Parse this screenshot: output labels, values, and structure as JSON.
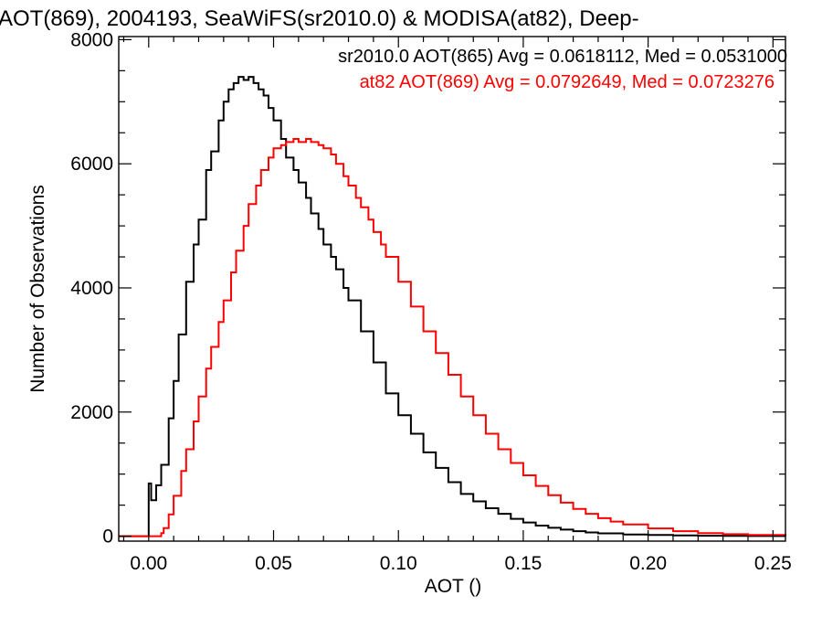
{
  "chart_data": {
    "type": "line",
    "title": "AOT(869), 2004193, SeaWiFS(sr2010.0) & MODISA(at82), Deep-",
    "xlabel": "AOT ()",
    "ylabel": "Number of Observations",
    "xlim": [
      -0.012,
      0.255
    ],
    "ylim": [
      -80,
      8050
    ],
    "xticks": [
      0.0,
      0.05,
      0.1,
      0.15,
      0.2,
      0.25
    ],
    "xtick_labels": [
      "0.00",
      "0.05",
      "0.10",
      "0.15",
      "0.20",
      "0.25"
    ],
    "yticks": [
      0,
      2000,
      4000,
      6000,
      8000
    ],
    "ytick_labels": [
      "0",
      "2000",
      "4000",
      "6000",
      "8000"
    ],
    "grid": false,
    "legend_position": "top-right",
    "series": [
      {
        "name": "sr2010.0 AOT(865) Avg = 0.0618112, Med = 0.0531000",
        "color": "#000000",
        "style": "step",
        "points": [
          [
            -0.012,
            0
          ],
          [
            -0.001,
            0
          ],
          [
            0,
            850
          ],
          [
            0.001,
            580
          ],
          [
            0.003,
            820
          ],
          [
            0.005,
            1150
          ],
          [
            0.008,
            1900
          ],
          [
            0.01,
            2500
          ],
          [
            0.012,
            3250
          ],
          [
            0.015,
            4100
          ],
          [
            0.018,
            4700
          ],
          [
            0.02,
            5100
          ],
          [
            0.023,
            5900
          ],
          [
            0.025,
            6200
          ],
          [
            0.028,
            6700
          ],
          [
            0.03,
            7000
          ],
          [
            0.032,
            7200
          ],
          [
            0.034,
            7300
          ],
          [
            0.036,
            7400
          ],
          [
            0.038,
            7350
          ],
          [
            0.04,
            7400
          ],
          [
            0.042,
            7300
          ],
          [
            0.044,
            7200
          ],
          [
            0.046,
            7100
          ],
          [
            0.048,
            6900
          ],
          [
            0.05,
            6700
          ],
          [
            0.053,
            6400
          ],
          [
            0.055,
            6100
          ],
          [
            0.058,
            5900
          ],
          [
            0.06,
            5700
          ],
          [
            0.063,
            5450
          ],
          [
            0.065,
            5200
          ],
          [
            0.068,
            4950
          ],
          [
            0.07,
            4700
          ],
          [
            0.073,
            4500
          ],
          [
            0.075,
            4300
          ],
          [
            0.078,
            4000
          ],
          [
            0.08,
            3800
          ],
          [
            0.085,
            3300
          ],
          [
            0.09,
            2800
          ],
          [
            0.095,
            2300
          ],
          [
            0.1,
            1950
          ],
          [
            0.105,
            1650
          ],
          [
            0.11,
            1350
          ],
          [
            0.115,
            1100
          ],
          [
            0.12,
            870
          ],
          [
            0.125,
            680
          ],
          [
            0.13,
            560
          ],
          [
            0.135,
            450
          ],
          [
            0.14,
            360
          ],
          [
            0.145,
            280
          ],
          [
            0.15,
            220
          ],
          [
            0.155,
            170
          ],
          [
            0.16,
            135
          ],
          [
            0.165,
            105
          ],
          [
            0.17,
            80
          ],
          [
            0.175,
            60
          ],
          [
            0.18,
            45
          ],
          [
            0.19,
            28
          ],
          [
            0.2,
            18
          ],
          [
            0.21,
            11
          ],
          [
            0.22,
            7
          ],
          [
            0.23,
            4
          ],
          [
            0.24,
            2
          ],
          [
            0.255,
            0
          ]
        ]
      },
      {
        "name": "at82 AOT(869) Avg = 0.0792649, Med = 0.0723276",
        "color": "#ff0000",
        "style": "step",
        "points": [
          [
            -0.012,
            0
          ],
          [
            0.004,
            0
          ],
          [
            0.005,
            50
          ],
          [
            0.006,
            130
          ],
          [
            0.008,
            350
          ],
          [
            0.01,
            650
          ],
          [
            0.013,
            1050
          ],
          [
            0.015,
            1400
          ],
          [
            0.018,
            1850
          ],
          [
            0.02,
            2250
          ],
          [
            0.023,
            2700
          ],
          [
            0.025,
            3050
          ],
          [
            0.028,
            3450
          ],
          [
            0.03,
            3800
          ],
          [
            0.033,
            4250
          ],
          [
            0.035,
            4600
          ],
          [
            0.038,
            5000
          ],
          [
            0.04,
            5350
          ],
          [
            0.043,
            5650
          ],
          [
            0.045,
            5900
          ],
          [
            0.048,
            6100
          ],
          [
            0.05,
            6250
          ],
          [
            0.053,
            6300
          ],
          [
            0.055,
            6350
          ],
          [
            0.058,
            6400
          ],
          [
            0.06,
            6350
          ],
          [
            0.063,
            6400
          ],
          [
            0.065,
            6350
          ],
          [
            0.068,
            6300
          ],
          [
            0.07,
            6250
          ],
          [
            0.073,
            6150
          ],
          [
            0.075,
            6000
          ],
          [
            0.078,
            5800
          ],
          [
            0.08,
            5650
          ],
          [
            0.083,
            5450
          ],
          [
            0.085,
            5300
          ],
          [
            0.088,
            5100
          ],
          [
            0.09,
            4900
          ],
          [
            0.093,
            4700
          ],
          [
            0.095,
            4500
          ],
          [
            0.1,
            4100
          ],
          [
            0.105,
            3700
          ],
          [
            0.11,
            3300
          ],
          [
            0.115,
            2950
          ],
          [
            0.12,
            2600
          ],
          [
            0.125,
            2250
          ],
          [
            0.13,
            1950
          ],
          [
            0.135,
            1650
          ],
          [
            0.14,
            1400
          ],
          [
            0.145,
            1180
          ],
          [
            0.15,
            980
          ],
          [
            0.155,
            810
          ],
          [
            0.16,
            660
          ],
          [
            0.165,
            540
          ],
          [
            0.17,
            440
          ],
          [
            0.175,
            360
          ],
          [
            0.18,
            290
          ],
          [
            0.185,
            235
          ],
          [
            0.19,
            190
          ],
          [
            0.2,
            125
          ],
          [
            0.21,
            80
          ],
          [
            0.22,
            50
          ],
          [
            0.23,
            32
          ],
          [
            0.24,
            20
          ],
          [
            0.255,
            12
          ]
        ]
      }
    ]
  }
}
